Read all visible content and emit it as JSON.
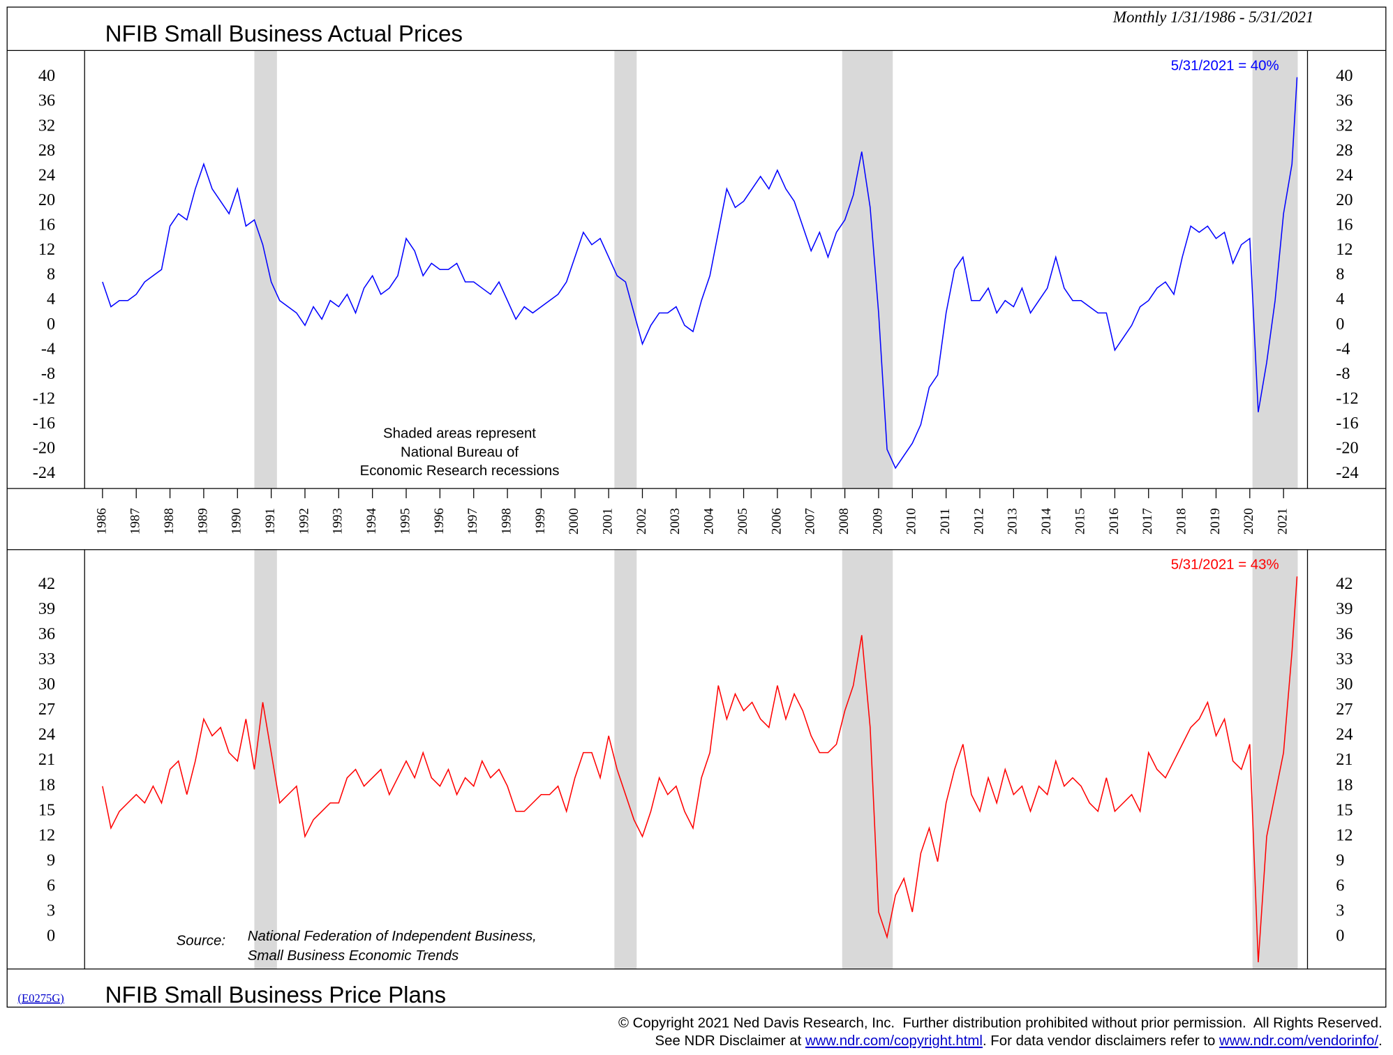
{
  "header": {
    "range": "Monthly 1/31/1986 - 5/31/2021",
    "code": "(E0275G)"
  },
  "chart_data": [
    {
      "type": "line",
      "title": "NFIB Small Business Actual Prices",
      "annotation": "5/31/2021 = 40%",
      "note": [
        "Shaded areas represent",
        "National Bureau of",
        "Economic Research recessions"
      ],
      "xlim": [
        1985.47,
        2021.71
      ],
      "ylim": [
        -26.3,
        44.3
      ],
      "xticks": [
        1986,
        1987,
        1988,
        1989,
        1990,
        1991,
        1992,
        1993,
        1994,
        1995,
        1996,
        1997,
        1998,
        1999,
        2000,
        2001,
        2002,
        2003,
        2004,
        2005,
        2006,
        2007,
        2008,
        2009,
        2010,
        2011,
        2012,
        2013,
        2014,
        2015,
        2016,
        2017,
        2018,
        2019,
        2020,
        2021
      ],
      "yticks": [
        40,
        36,
        32,
        28,
        24,
        20,
        16,
        12,
        8,
        4,
        0,
        -4,
        -8,
        -12,
        -16,
        -20,
        -24
      ],
      "shaded": [
        [
          1990.5,
          1991.17
        ],
        [
          2001.17,
          2001.83
        ],
        [
          2007.92,
          2009.42
        ],
        [
          2020.08,
          2021.42
        ]
      ],
      "x": [
        1986,
        1986.25,
        1986.5,
        1986.75,
        1987,
        1987.25,
        1987.5,
        1987.75,
        1988,
        1988.25,
        1988.5,
        1988.75,
        1989,
        1989.25,
        1989.5,
        1989.75,
        1990,
        1990.25,
        1990.5,
        1990.75,
        1991,
        1991.25,
        1991.5,
        1991.75,
        1992,
        1992.25,
        1992.5,
        1992.75,
        1993,
        1993.25,
        1993.5,
        1993.75,
        1994,
        1994.25,
        1994.5,
        1994.75,
        1995,
        1995.25,
        1995.5,
        1995.75,
        1996,
        1996.25,
        1996.5,
        1996.75,
        1997,
        1997.25,
        1997.5,
        1997.75,
        1998,
        1998.25,
        1998.5,
        1998.75,
        1999,
        1999.25,
        1999.5,
        1999.75,
        2000,
        2000.25,
        2000.5,
        2000.75,
        2001,
        2001.25,
        2001.5,
        2001.75,
        2002,
        2002.25,
        2002.5,
        2002.75,
        2003,
        2003.25,
        2003.5,
        2003.75,
        2004,
        2004.25,
        2004.5,
        2004.75,
        2005,
        2005.25,
        2005.5,
        2005.75,
        2006,
        2006.25,
        2006.5,
        2006.75,
        2007,
        2007.25,
        2007.5,
        2007.75,
        2008,
        2008.25,
        2008.5,
        2008.75,
        2009,
        2009.25,
        2009.5,
        2009.75,
        2010,
        2010.25,
        2010.5,
        2010.75,
        2011,
        2011.25,
        2011.5,
        2011.75,
        2012,
        2012.25,
        2012.5,
        2012.75,
        2013,
        2013.25,
        2013.5,
        2013.75,
        2014,
        2014.25,
        2014.5,
        2014.75,
        2015,
        2015.25,
        2015.5,
        2015.75,
        2016,
        2016.25,
        2016.5,
        2016.75,
        2017,
        2017.25,
        2017.5,
        2017.75,
        2018,
        2018.25,
        2018.5,
        2018.75,
        2019,
        2019.25,
        2019.5,
        2019.75,
        2020,
        2020.25,
        2020.5,
        2020.75,
        2021,
        2021.25,
        2021.4
      ],
      "series": [
        {
          "color": "#0000ff",
          "values": [
            7,
            3,
            4,
            4,
            5,
            7,
            8,
            9,
            16,
            18,
            17,
            22,
            26,
            22,
            20,
            18,
            22,
            16,
            17,
            13,
            7,
            4,
            3,
            2,
            0,
            3,
            1,
            4,
            3,
            5,
            2,
            6,
            8,
            5,
            6,
            8,
            14,
            12,
            8,
            10,
            9,
            9,
            10,
            7,
            7,
            6,
            5,
            7,
            4,
            1,
            3,
            2,
            3,
            4,
            5,
            7,
            11,
            15,
            13,
            14,
            11,
            8,
            7,
            2,
            -3,
            0,
            2,
            2,
            3,
            0,
            -1,
            4,
            8,
            15,
            22,
            19,
            20,
            22,
            24,
            22,
            25,
            22,
            20,
            16,
            12,
            15,
            11,
            15,
            17,
            21,
            28,
            19,
            2,
            -20,
            -23,
            -21,
            -19,
            -16,
            -10,
            -8,
            2,
            9,
            11,
            4,
            4,
            6,
            2,
            4,
            3,
            6,
            2,
            4,
            6,
            11,
            6,
            4,
            4,
            3,
            2,
            2,
            -4,
            -2,
            0,
            3,
            4,
            6,
            7,
            5,
            11,
            16,
            15,
            16,
            14,
            15,
            10,
            13,
            14,
            -14,
            -6,
            4,
            18,
            26,
            40
          ]
        }
      ]
    },
    {
      "type": "line",
      "title": "NFIB Small Business Price Plans",
      "annotation": "5/31/2021 = 43%",
      "source_label": "Source:",
      "source": [
        "National Federation of Independent Business,",
        "Small Business Economic Trends"
      ],
      "xlim": [
        1985.47,
        2021.71
      ],
      "ylim": [
        -3.8,
        46.2
      ],
      "yticks": [
        42,
        39,
        36,
        33,
        30,
        27,
        24,
        21,
        18,
        15,
        12,
        9,
        6,
        3,
        0
      ],
      "shaded": [
        [
          1990.5,
          1991.17
        ],
        [
          2001.17,
          2001.83
        ],
        [
          2007.92,
          2009.42
        ],
        [
          2020.08,
          2021.42
        ]
      ],
      "x": [
        1986,
        1986.25,
        1986.5,
        1986.75,
        1987,
        1987.25,
        1987.5,
        1987.75,
        1988,
        1988.25,
        1988.5,
        1988.75,
        1989,
        1989.25,
        1989.5,
        1989.75,
        1990,
        1990.25,
        1990.5,
        1990.75,
        1991,
        1991.25,
        1991.5,
        1991.75,
        1992,
        1992.25,
        1992.5,
        1992.75,
        1993,
        1993.25,
        1993.5,
        1993.75,
        1994,
        1994.25,
        1994.5,
        1994.75,
        1995,
        1995.25,
        1995.5,
        1995.75,
        1996,
        1996.25,
        1996.5,
        1996.75,
        1997,
        1997.25,
        1997.5,
        1997.75,
        1998,
        1998.25,
        1998.5,
        1998.75,
        1999,
        1999.25,
        1999.5,
        1999.75,
        2000,
        2000.25,
        2000.5,
        2000.75,
        2001,
        2001.25,
        2001.5,
        2001.75,
        2002,
        2002.25,
        2002.5,
        2002.75,
        2003,
        2003.25,
        2003.5,
        2003.75,
        2004,
        2004.25,
        2004.5,
        2004.75,
        2005,
        2005.25,
        2005.5,
        2005.75,
        2006,
        2006.25,
        2006.5,
        2006.75,
        2007,
        2007.25,
        2007.5,
        2007.75,
        2008,
        2008.25,
        2008.5,
        2008.75,
        2009,
        2009.25,
        2009.5,
        2009.75,
        2010,
        2010.25,
        2010.5,
        2010.75,
        2011,
        2011.25,
        2011.5,
        2011.75,
        2012,
        2012.25,
        2012.5,
        2012.75,
        2013,
        2013.25,
        2013.5,
        2013.75,
        2014,
        2014.25,
        2014.5,
        2014.75,
        2015,
        2015.25,
        2015.5,
        2015.75,
        2016,
        2016.25,
        2016.5,
        2016.75,
        2017,
        2017.25,
        2017.5,
        2017.75,
        2018,
        2018.25,
        2018.5,
        2018.75,
        2019,
        2019.25,
        2019.5,
        2019.75,
        2020,
        2020.25,
        2020.5,
        2020.75,
        2021,
        2021.25,
        2021.4
      ],
      "series": [
        {
          "color": "#ff0000",
          "values": [
            18,
            13,
            15,
            16,
            17,
            16,
            18,
            16,
            20,
            21,
            17,
            21,
            26,
            24,
            25,
            22,
            21,
            26,
            20,
            28,
            22,
            16,
            17,
            18,
            12,
            14,
            15,
            16,
            16,
            19,
            20,
            18,
            19,
            20,
            17,
            19,
            21,
            19,
            22,
            19,
            18,
            20,
            17,
            19,
            18,
            21,
            19,
            20,
            18,
            15,
            15,
            16,
            17,
            17,
            18,
            15,
            19,
            22,
            22,
            19,
            24,
            20,
            17,
            14,
            12,
            15,
            19,
            17,
            18,
            15,
            13,
            19,
            22,
            30,
            26,
            29,
            27,
            28,
            26,
            25,
            30,
            26,
            29,
            27,
            24,
            22,
            22,
            23,
            27,
            30,
            36,
            25,
            3,
            0,
            5,
            7,
            3,
            10,
            13,
            9,
            16,
            20,
            23,
            17,
            15,
            19,
            16,
            20,
            17,
            18,
            15,
            18,
            17,
            21,
            18,
            19,
            18,
            16,
            15,
            19,
            15,
            16,
            17,
            15,
            22,
            20,
            19,
            21,
            23,
            25,
            26,
            28,
            24,
            26,
            21,
            20,
            23,
            -3,
            12,
            17,
            22,
            34,
            43
          ]
        }
      ]
    }
  ],
  "footer": {
    "copyright": "© Copyright 2021 Ned Davis Research, Inc.  Further distribution prohibited without prior permission.  All Rights Reserved.",
    "pre": "See NDR Disclaimer at ",
    "link1": "www.ndr.com/copyright.html",
    "mid": ". For data vendor disclaimers refer to ",
    "link2": "www.ndr.com/vendorinfo/",
    "end": "."
  }
}
